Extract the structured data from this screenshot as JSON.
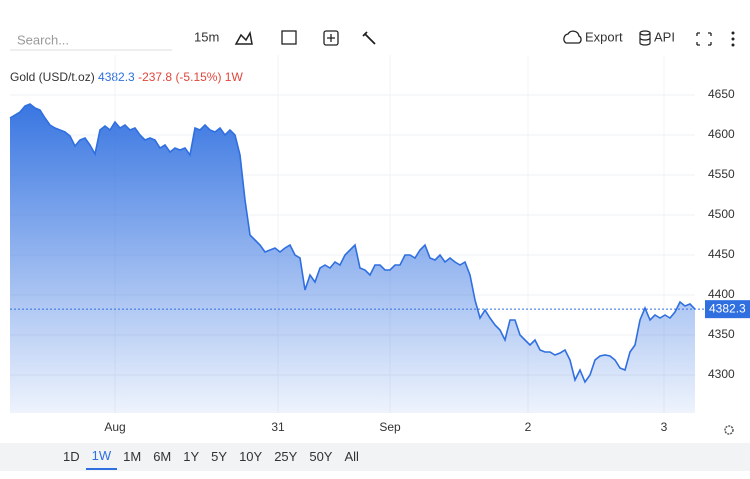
{
  "toolbar": {
    "search_placeholder": "Search...",
    "interval": "15m",
    "export": "Export",
    "api": "API"
  },
  "chart_data": {
    "type": "area",
    "title": "Gold (USD/t.oz)",
    "last": 4382.3,
    "change": "-237.8 (-5.15%)",
    "period": "1W",
    "color": "#2f6fe0",
    "values": [
      4621.2,
      4625,
      4628.8,
      4636.2,
      4638.8,
      4633.8,
      4631.2,
      4621.2,
      4612.5,
      4608.8,
      4606.2,
      4603.8,
      4598.8,
      4586.2,
      4593.8,
      4596.2,
      4587.5,
      4576.2,
      4606.2,
      4611.2,
      4606.2,
      4616.2,
      4608.8,
      4612.5,
      4606.2,
      4608.8,
      4600,
      4593.8,
      4596.2,
      4593.8,
      4583.8,
      4587.5,
      4578.8,
      4583.8,
      4581.2,
      4583.8,
      4575,
      4608.8,
      4606.2,
      4612.5,
      4606.2,
      4603.8,
      4608.8,
      4600,
      4606.2,
      4600,
      4575,
      4518.8,
      4475,
      4468.8,
      4462.5,
      4453.8,
      4456.2,
      4458.8,
      4453.8,
      4458.8,
      4462.5,
      4450,
      4446.2,
      4406.2,
      4425,
      4416.2,
      4433.8,
      4437.5,
      4433.8,
      4441.2,
      4437.5,
      4450,
      4456.2,
      4462.5,
      4433.8,
      4431.2,
      4425,
      4437.5,
      4437.5,
      4431.2,
      4431.2,
      4437.5,
      4437.5,
      4450,
      4450,
      4446.2,
      4456.2,
      4462.5,
      4446.2,
      4443.8,
      4450,
      4441.2,
      4446.2,
      4441.2,
      4437.5,
      4441.2,
      4425,
      4393.8,
      4371.2,
      4381.2,
      4371.2,
      4362.5,
      4356.2,
      4343.8,
      4368.8,
      4368.8,
      4350,
      4343.8,
      4337.5,
      4343.8,
      4331.2,
      4328.8,
      4328.8,
      4325,
      4327.5,
      4331.2,
      4318.8,
      4293.8,
      4306.2,
      4291.2,
      4300,
      4318.8,
      4323.8,
      4325,
      4323.8,
      4318.8,
      4308.8,
      4306.2,
      4328.8,
      4337.5,
      4368.8,
      4383.8,
      4368.8,
      4375,
      4371.2,
      4375,
      4371.2,
      4378.8,
      4391.2,
      4386.2,
      4388.8,
      4382.3
    ],
    "xlim": [
      0,
      137
    ],
    "xticks": [
      {
        "value": 21,
        "label": "Aug"
      },
      {
        "value": 53.6,
        "label": "31"
      },
      {
        "value": 76,
        "label": "Sep"
      },
      {
        "value": 103.6,
        "label": "2"
      },
      {
        "value": 130.8,
        "label": "3"
      }
    ],
    "ylim": [
      4252.5,
      4700
    ],
    "yticks": [
      4300,
      4350,
      4400,
      4450,
      4500,
      4550,
      4600,
      4650
    ],
    "grid": true
  },
  "range_buttons": {
    "items": [
      "1D",
      "1W",
      "1M",
      "6M",
      "1Y",
      "5Y",
      "10Y",
      "25Y",
      "50Y",
      "All"
    ],
    "selected": 1
  }
}
